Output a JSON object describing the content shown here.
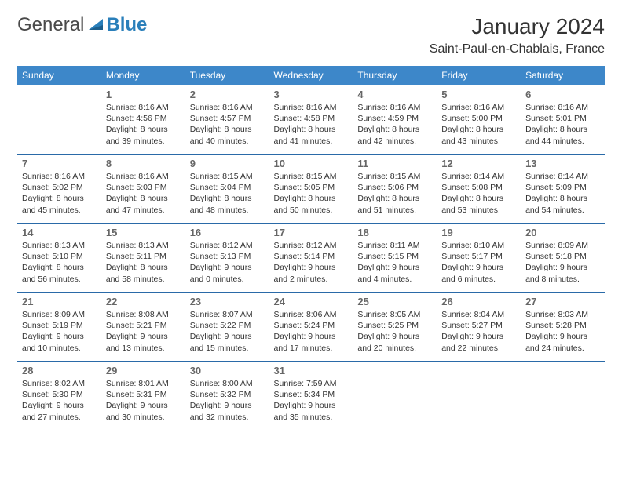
{
  "logo": {
    "text1": "General",
    "text2": "Blue"
  },
  "title": "January 2024",
  "location": "Saint-Paul-en-Chablais, France",
  "colors": {
    "header_bg": "#3d87c9",
    "header_text": "#ffffff",
    "row_border": "#2a6aa8",
    "daynum": "#666666",
    "body_text": "#333333",
    "logo_gray": "#4a4a4a",
    "logo_blue": "#2a7fba"
  },
  "day_headers": [
    "Sunday",
    "Monday",
    "Tuesday",
    "Wednesday",
    "Thursday",
    "Friday",
    "Saturday"
  ],
  "weeks": [
    [
      {
        "n": "",
        "sr": "",
        "ss": "",
        "d1": "",
        "d2": ""
      },
      {
        "n": "1",
        "sr": "Sunrise: 8:16 AM",
        "ss": "Sunset: 4:56 PM",
        "d1": "Daylight: 8 hours",
        "d2": "and 39 minutes."
      },
      {
        "n": "2",
        "sr": "Sunrise: 8:16 AM",
        "ss": "Sunset: 4:57 PM",
        "d1": "Daylight: 8 hours",
        "d2": "and 40 minutes."
      },
      {
        "n": "3",
        "sr": "Sunrise: 8:16 AM",
        "ss": "Sunset: 4:58 PM",
        "d1": "Daylight: 8 hours",
        "d2": "and 41 minutes."
      },
      {
        "n": "4",
        "sr": "Sunrise: 8:16 AM",
        "ss": "Sunset: 4:59 PM",
        "d1": "Daylight: 8 hours",
        "d2": "and 42 minutes."
      },
      {
        "n": "5",
        "sr": "Sunrise: 8:16 AM",
        "ss": "Sunset: 5:00 PM",
        "d1": "Daylight: 8 hours",
        "d2": "and 43 minutes."
      },
      {
        "n": "6",
        "sr": "Sunrise: 8:16 AM",
        "ss": "Sunset: 5:01 PM",
        "d1": "Daylight: 8 hours",
        "d2": "and 44 minutes."
      }
    ],
    [
      {
        "n": "7",
        "sr": "Sunrise: 8:16 AM",
        "ss": "Sunset: 5:02 PM",
        "d1": "Daylight: 8 hours",
        "d2": "and 45 minutes."
      },
      {
        "n": "8",
        "sr": "Sunrise: 8:16 AM",
        "ss": "Sunset: 5:03 PM",
        "d1": "Daylight: 8 hours",
        "d2": "and 47 minutes."
      },
      {
        "n": "9",
        "sr": "Sunrise: 8:15 AM",
        "ss": "Sunset: 5:04 PM",
        "d1": "Daylight: 8 hours",
        "d2": "and 48 minutes."
      },
      {
        "n": "10",
        "sr": "Sunrise: 8:15 AM",
        "ss": "Sunset: 5:05 PM",
        "d1": "Daylight: 8 hours",
        "d2": "and 50 minutes."
      },
      {
        "n": "11",
        "sr": "Sunrise: 8:15 AM",
        "ss": "Sunset: 5:06 PM",
        "d1": "Daylight: 8 hours",
        "d2": "and 51 minutes."
      },
      {
        "n": "12",
        "sr": "Sunrise: 8:14 AM",
        "ss": "Sunset: 5:08 PM",
        "d1": "Daylight: 8 hours",
        "d2": "and 53 minutes."
      },
      {
        "n": "13",
        "sr": "Sunrise: 8:14 AM",
        "ss": "Sunset: 5:09 PM",
        "d1": "Daylight: 8 hours",
        "d2": "and 54 minutes."
      }
    ],
    [
      {
        "n": "14",
        "sr": "Sunrise: 8:13 AM",
        "ss": "Sunset: 5:10 PM",
        "d1": "Daylight: 8 hours",
        "d2": "and 56 minutes."
      },
      {
        "n": "15",
        "sr": "Sunrise: 8:13 AM",
        "ss": "Sunset: 5:11 PM",
        "d1": "Daylight: 8 hours",
        "d2": "and 58 minutes."
      },
      {
        "n": "16",
        "sr": "Sunrise: 8:12 AM",
        "ss": "Sunset: 5:13 PM",
        "d1": "Daylight: 9 hours",
        "d2": "and 0 minutes."
      },
      {
        "n": "17",
        "sr": "Sunrise: 8:12 AM",
        "ss": "Sunset: 5:14 PM",
        "d1": "Daylight: 9 hours",
        "d2": "and 2 minutes."
      },
      {
        "n": "18",
        "sr": "Sunrise: 8:11 AM",
        "ss": "Sunset: 5:15 PM",
        "d1": "Daylight: 9 hours",
        "d2": "and 4 minutes."
      },
      {
        "n": "19",
        "sr": "Sunrise: 8:10 AM",
        "ss": "Sunset: 5:17 PM",
        "d1": "Daylight: 9 hours",
        "d2": "and 6 minutes."
      },
      {
        "n": "20",
        "sr": "Sunrise: 8:09 AM",
        "ss": "Sunset: 5:18 PM",
        "d1": "Daylight: 9 hours",
        "d2": "and 8 minutes."
      }
    ],
    [
      {
        "n": "21",
        "sr": "Sunrise: 8:09 AM",
        "ss": "Sunset: 5:19 PM",
        "d1": "Daylight: 9 hours",
        "d2": "and 10 minutes."
      },
      {
        "n": "22",
        "sr": "Sunrise: 8:08 AM",
        "ss": "Sunset: 5:21 PM",
        "d1": "Daylight: 9 hours",
        "d2": "and 13 minutes."
      },
      {
        "n": "23",
        "sr": "Sunrise: 8:07 AM",
        "ss": "Sunset: 5:22 PM",
        "d1": "Daylight: 9 hours",
        "d2": "and 15 minutes."
      },
      {
        "n": "24",
        "sr": "Sunrise: 8:06 AM",
        "ss": "Sunset: 5:24 PM",
        "d1": "Daylight: 9 hours",
        "d2": "and 17 minutes."
      },
      {
        "n": "25",
        "sr": "Sunrise: 8:05 AM",
        "ss": "Sunset: 5:25 PM",
        "d1": "Daylight: 9 hours",
        "d2": "and 20 minutes."
      },
      {
        "n": "26",
        "sr": "Sunrise: 8:04 AM",
        "ss": "Sunset: 5:27 PM",
        "d1": "Daylight: 9 hours",
        "d2": "and 22 minutes."
      },
      {
        "n": "27",
        "sr": "Sunrise: 8:03 AM",
        "ss": "Sunset: 5:28 PM",
        "d1": "Daylight: 9 hours",
        "d2": "and 24 minutes."
      }
    ],
    [
      {
        "n": "28",
        "sr": "Sunrise: 8:02 AM",
        "ss": "Sunset: 5:30 PM",
        "d1": "Daylight: 9 hours",
        "d2": "and 27 minutes."
      },
      {
        "n": "29",
        "sr": "Sunrise: 8:01 AM",
        "ss": "Sunset: 5:31 PM",
        "d1": "Daylight: 9 hours",
        "d2": "and 30 minutes."
      },
      {
        "n": "30",
        "sr": "Sunrise: 8:00 AM",
        "ss": "Sunset: 5:32 PM",
        "d1": "Daylight: 9 hours",
        "d2": "and 32 minutes."
      },
      {
        "n": "31",
        "sr": "Sunrise: 7:59 AM",
        "ss": "Sunset: 5:34 PM",
        "d1": "Daylight: 9 hours",
        "d2": "and 35 minutes."
      },
      {
        "n": "",
        "sr": "",
        "ss": "",
        "d1": "",
        "d2": ""
      },
      {
        "n": "",
        "sr": "",
        "ss": "",
        "d1": "",
        "d2": ""
      },
      {
        "n": "",
        "sr": "",
        "ss": "",
        "d1": "",
        "d2": ""
      }
    ]
  ]
}
